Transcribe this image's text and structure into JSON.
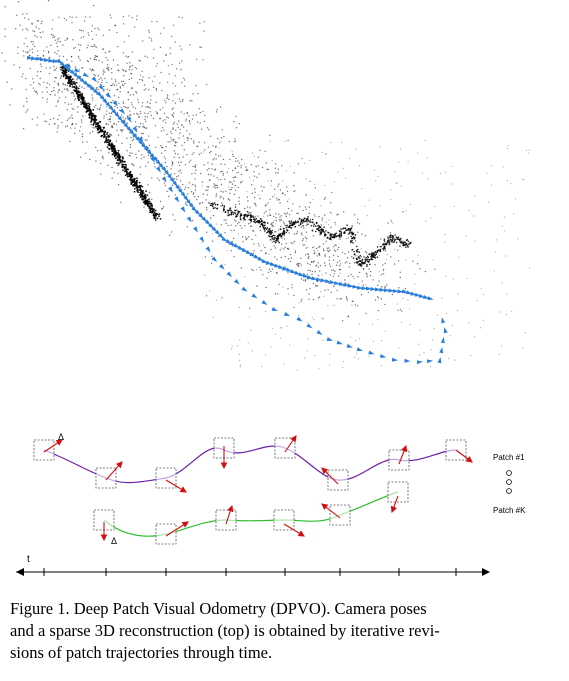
{
  "figure": {
    "caption_lines": [
      "Figure 1.  Deep Patch Visual Odometry (DPVO). Camera poses",
      "and a sparse 3D reconstruction (top) is obtained by iterative revi-",
      "sions of patch trajectories through time."
    ],
    "patch_labels": {
      "first": "Patch #1",
      "last": "Patch #K"
    },
    "delta_symbol": "Δ",
    "time_axis_label": "t",
    "colors": {
      "camera_poses": "#2a7fdc",
      "points": "#000000",
      "trajectory_top": "#6a1fa8",
      "trajectory_bottom": "#2fbf2f",
      "arrows": "#d01010",
      "patch_box": "#555555"
    }
  }
}
